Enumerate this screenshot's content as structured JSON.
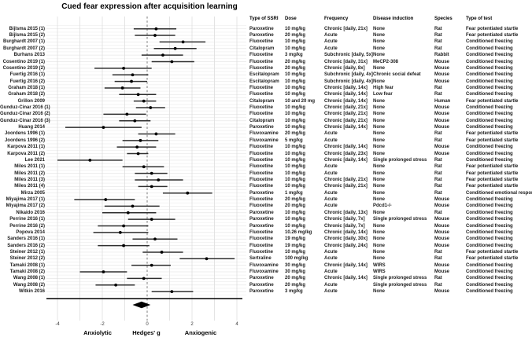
{
  "chart_data": {
    "type": "scatter",
    "subtype": "forest-plot-with-study-table",
    "title": "Cued fear expression after acquisition learning",
    "xlabel": "Hedges' g",
    "xlabel_left": "Anxiolytic",
    "xlabel_right": "Anxiogenic",
    "x_ticks": [
      -4,
      -2,
      0,
      2,
      4
    ],
    "x_gridlines": [
      -4,
      -3,
      -2,
      -1,
      0,
      1,
      2,
      3,
      4
    ],
    "xlim": [
      -4.5,
      4.4
    ],
    "zero_line": 0,
    "grid": "on",
    "colors": {
      "point": "#000000",
      "ci_line": "#2e2e2e",
      "zero_line_dash": "#909090",
      "gridline": "#e0e0e0",
      "diamond": "#000000"
    },
    "columns": [
      "Type of SSRI",
      "Dose",
      "Frequency",
      "Disease induction",
      "Species",
      "Type of test"
    ],
    "studies": [
      {
        "label": "Bijlsma 2015 (1)",
        "ssri": "Paroxetine",
        "dose": "10 mg/kg",
        "frequency": "Chronic [daily, 21x]",
        "disease_induction": "None",
        "species": "Rat",
        "test": "Fear potentiated startle",
        "g": 0.4,
        "ci_low": -0.6,
        "ci_high": 1.3
      },
      {
        "label": "Bijlsma 2015 (2)",
        "ssri": "Paroxetine",
        "dose": "20 mg/kg",
        "frequency": "Acute",
        "disease_induction": "None",
        "species": "Rat",
        "test": "Fear potentiated startle",
        "g": 0.35,
        "ci_low": -0.55,
        "ci_high": 1.25
      },
      {
        "label": "Burghardt 2007 (1)",
        "ssri": "Fluoxetine",
        "dose": "10 mg/kg",
        "frequency": "Acute",
        "disease_induction": "None",
        "species": "Rat",
        "test": "Conditioned freezing",
        "g": 1.6,
        "ci_low": 0.55,
        "ci_high": 2.6
      },
      {
        "label": "Burghardt 2007 (2)",
        "ssri": "Citalopram",
        "dose": "10 mg/kg",
        "frequency": "Acute",
        "disease_induction": "None",
        "species": "Rat",
        "test": "Conditioned freezing",
        "g": 1.25,
        "ci_low": 0.3,
        "ci_high": 2.2
      },
      {
        "label": "Burhans 2013",
        "ssri": "Fluoxetine",
        "dose": "3 mg/kg",
        "frequency": "Subchronic [daily, 5x]",
        "disease_induction": "None",
        "species": "Rabbit",
        "test": "Conditioned freezing",
        "g": 0.7,
        "ci_low": -0.25,
        "ci_high": 1.6
      },
      {
        "label": "Cosentino 2019 (1)",
        "ssri": "Fluoxetine",
        "dose": "20 mg/kg",
        "frequency": "Chronic [daily, 31x]",
        "disease_induction": "MeCP2-308",
        "species": "Mouse",
        "test": "Conditioned freezing",
        "g": 1.1,
        "ci_low": 0.2,
        "ci_high": 2.1
      },
      {
        "label": "Cosentino 2019 (2)",
        "ssri": "Fluoxetine",
        "dose": "20 mg/kg",
        "frequency": "Chronic [daily, 8x]",
        "disease_induction": "None",
        "species": "Mouse",
        "test": "Conditioned freezing",
        "g": -1.05,
        "ci_low": -2.35,
        "ci_high": 0.2
      },
      {
        "label": "Fuertig 2016 (1)",
        "ssri": "Escitalopram",
        "dose": "10 mg/kg",
        "frequency": "Subchronic [daily, 4x]",
        "disease_induction": "Chronic social defeat",
        "species": "Mouse",
        "test": "Conditioned freezing",
        "g": -0.65,
        "ci_low": -1.55,
        "ci_high": 0.05
      },
      {
        "label": "Fuertig 2016 (2)",
        "ssri": "Escitalopram",
        "dose": "10 mg/kg",
        "frequency": "Subchronic [daily, 4x]",
        "disease_induction": "None",
        "species": "Mouse",
        "test": "Conditioned freezing",
        "g": -0.7,
        "ci_low": -1.45,
        "ci_high": 0.0
      },
      {
        "label": "Graham 2018 (1)",
        "ssri": "Fluoxetine",
        "dose": "10 mg/kg",
        "frequency": "Chronic [daily, 14x]",
        "disease_induction": "High fear",
        "species": "Rat",
        "test": "Conditioned freezing",
        "g": -1.1,
        "ci_low": -1.9,
        "ci_high": -0.3
      },
      {
        "label": "Graham 2018 (2)",
        "ssri": "Fluoxetine",
        "dose": "10 mg/kg",
        "frequency": "Chronic [daily, 14x]",
        "disease_induction": "Low fear",
        "species": "Rat",
        "test": "Conditioned freezing",
        "g": -0.4,
        "ci_low": -1.25,
        "ci_high": 0.4
      },
      {
        "label": "Grillon 2009",
        "ssri": "Citalopram",
        "dose": "10 and 20 mg",
        "frequency": "Chronic [daily, 14x]",
        "disease_induction": "None",
        "species": "Human",
        "test": "Fear potentiated startle",
        "g": -0.15,
        "ci_low": -0.6,
        "ci_high": 0.4
      },
      {
        "label": "Gunduz-Cinar 2016 (1)",
        "ssri": "Fluoxetine",
        "dose": "10 mg/kg",
        "frequency": "Chronic [daily, 21x]",
        "disease_induction": "None",
        "species": "Mouse",
        "test": "Conditioned freezing",
        "g": 0.15,
        "ci_low": -0.5,
        "ci_high": 0.8
      },
      {
        "label": "Gunduz-Cinar 2016 (2)",
        "ssri": "Fluoxetine",
        "dose": "10 mg/kg",
        "frequency": "Chronic [daily, 21x]",
        "disease_induction": "None",
        "species": "Mouse",
        "test": "Conditioned freezing",
        "g": -0.9,
        "ci_low": -1.95,
        "ci_high": -0.05
      },
      {
        "label": "Gunduz-Cinar 2016 (3)",
        "ssri": "Citalopram",
        "dose": "10 mg/kg",
        "frequency": "Chronic [daily, 21x]",
        "disease_induction": "None",
        "species": "Mouse",
        "test": "Conditioned freezing",
        "g": -0.55,
        "ci_low": -1.25,
        "ci_high": 0.15
      },
      {
        "label": "Huang 2014",
        "ssri": "Paroxetine",
        "dose": "10 mg/kg",
        "frequency": "Chronic [daily, 14x]",
        "disease_induction": "None",
        "species": "Mouse",
        "test": "Conditioned freezing",
        "g": -1.95,
        "ci_low": -3.65,
        "ci_high": -0.25
      },
      {
        "label": "Joordens 1996 (1)",
        "ssri": "Fluvoxamine",
        "dose": "20 mg/kg",
        "frequency": "Acute",
        "disease_induction": "None",
        "species": "Rat",
        "test": "Fear potentiated startle",
        "g": 0.4,
        "ci_low": -0.4,
        "ci_high": 1.25
      },
      {
        "label": "Joordens 1996 (2)",
        "ssri": "Fluvoxamine",
        "dose": "5 mg/kg",
        "frequency": "Acute",
        "disease_induction": "None",
        "species": "Rat",
        "test": "Fear potentiated startle",
        "g": -0.3,
        "ci_low": -1.1,
        "ci_high": 0.5
      },
      {
        "label": "Karpova 2011 (1)",
        "ssri": "Fluoxetine",
        "dose": "10 mg/kg",
        "frequency": "Chronic [daily, 14x]",
        "disease_induction": "None",
        "species": "Mouse",
        "test": "Conditioned freezing",
        "g": -0.45,
        "ci_low": -1.35,
        "ci_high": 0.4
      },
      {
        "label": "Karpova 2011 (2)",
        "ssri": "Fluoxetine",
        "dose": "10 mg/kg",
        "frequency": "Chronic [daily, 23x]",
        "disease_induction": "None",
        "species": "Mouse",
        "test": "Conditioned freezing",
        "g": -0.4,
        "ci_low": -0.9,
        "ci_high": 0.05
      },
      {
        "label": "Lee 2021",
        "ssri": "Fluoxetine",
        "dose": "10 mg/kg",
        "frequency": "Chronic [daily, 14x]",
        "disease_induction": "Single prolonged stress",
        "species": "Rat",
        "test": "Conditioned freezing",
        "g": -2.55,
        "ci_low": -4.0,
        "ci_high": -1.1
      },
      {
        "label": "Miles 2011 (1)",
        "ssri": "Fluoxetine",
        "dose": "10 mg/kg",
        "frequency": "Acute",
        "disease_induction": "None",
        "species": "Rat",
        "test": "Fear potentiated startle",
        "g": -0.15,
        "ci_low": -1.1,
        "ci_high": 0.75
      },
      {
        "label": "Miles 2011 (2)",
        "ssri": "Fluoxetine",
        "dose": "10 mg/kg",
        "frequency": "Acute",
        "disease_induction": "None",
        "species": "Rat",
        "test": "Fear potentiated startle",
        "g": 0.2,
        "ci_low": -0.55,
        "ci_high": 0.9
      },
      {
        "label": "Miles 2011 (3)",
        "ssri": "Fluoxetine",
        "dose": "10 mg/kg",
        "frequency": "Chronic [daily, 21x]",
        "disease_induction": "None",
        "species": "Rat",
        "test": "Fear potentiated startle",
        "g": 0.5,
        "ci_low": -0.55,
        "ci_high": 1.6
      },
      {
        "label": "Miles 2011 (4)",
        "ssri": "Fluoxetine",
        "dose": "10 mg/kg",
        "frequency": "Chronic [daily, 21x]",
        "disease_induction": "None",
        "species": "Rat",
        "test": "Fear potentiated startle",
        "g": 0.2,
        "ci_low": -0.4,
        "ci_high": 0.9
      },
      {
        "label": "Mirza 2005",
        "ssri": "Paroxetine",
        "dose": "1 mg/kg",
        "frequency": "Acute",
        "disease_induction": "None",
        "species": "Rat",
        "test": "Conditioned emotional response",
        "g": 1.8,
        "ci_low": 0.7,
        "ci_high": 2.9
      },
      {
        "label": "Miyajima 2017 (1)",
        "ssri": "Fluoxetine",
        "dose": "20 mg/kg",
        "frequency": "Acute",
        "disease_induction": "None",
        "species": "Mouse",
        "test": "Conditioned freezing",
        "g": -1.85,
        "ci_low": -3.25,
        "ci_high": -0.55
      },
      {
        "label": "Miyajima 2017 (2)",
        "ssri": "Fluoxetine",
        "dose": "20 mg/kg",
        "frequency": "Acute",
        "disease_induction": "Pdcd1-/-",
        "species": "Mouse",
        "test": "Conditioned freezing",
        "g": -0.65,
        "ci_low": -1.9,
        "ci_high": 0.55
      },
      {
        "label": "Nikaido 2016",
        "ssri": "Paroxetine",
        "dose": "10 mg/kg",
        "frequency": "Chronic [daily, 13x]",
        "disease_induction": "None",
        "species": "Rat",
        "test": "Conditioned freezing",
        "g": -0.85,
        "ci_low": -2.0,
        "ci_high": 0.4
      },
      {
        "label": "Perrine 2016 (1)",
        "ssri": "Paroxetine",
        "dose": "10 mg/kg",
        "frequency": "Chronic [daily, 7x]",
        "disease_induction": "Single prolonged stress",
        "species": "Mouse",
        "test": "Conditioned freezing",
        "g": 0.2,
        "ci_low": -0.85,
        "ci_high": 1.25
      },
      {
        "label": "Perrine 2016 (2)",
        "ssri": "Paroxetine",
        "dose": "10 mg/kg",
        "frequency": "Chronic [daily, 7x]",
        "disease_induction": "None",
        "species": "Mouse",
        "test": "Conditioned freezing",
        "g": -1.05,
        "ci_low": -2.2,
        "ci_high": 0.05
      },
      {
        "label": "Popova 2014",
        "ssri": "Fluoxetine",
        "dose": "10.26 mg/kg",
        "frequency": "Chronic [daily, 14x]",
        "disease_induction": "None",
        "species": "Mouse",
        "test": "Conditioned freezing",
        "g": -1.2,
        "ci_low": -2.4,
        "ci_high": 0.05
      },
      {
        "label": "Sanders 2016 (1)",
        "ssri": "Fluoxetine",
        "dose": "19 mg/kg",
        "frequency": "Chronic [daily, 30x]",
        "disease_induction": "None",
        "species": "Mouse",
        "test": "Conditioned freezing",
        "g": 0.35,
        "ci_low": -0.65,
        "ci_high": 1.35
      },
      {
        "label": "Sanders 2016 (2)",
        "ssri": "Fluoxetine",
        "dose": "19 mg/kg",
        "frequency": "Chronic [daily, 24x]",
        "disease_induction": "None",
        "species": "Mouse",
        "test": "Conditioned freezing",
        "g": -1.05,
        "ci_low": -2.2,
        "ci_high": 0.1
      },
      {
        "label": "Steiner 2012 (1)",
        "ssri": "Fluoxetine",
        "dose": "10 mg/kg",
        "frequency": "Acute",
        "disease_induction": "None",
        "species": "Rat",
        "test": "Fear potentiated startle",
        "g": 0.65,
        "ci_low": -0.2,
        "ci_high": 1.6
      },
      {
        "label": "Steiner 2012 (2)",
        "ssri": "Sertraline",
        "dose": "100 mg/kg",
        "frequency": "Acute",
        "disease_induction": "None",
        "species": "Rat",
        "test": "Fear potentiated startle",
        "g": 2.65,
        "ci_low": 1.45,
        "ci_high": 3.9
      },
      {
        "label": "Tamaki 2008 (1)",
        "ssri": "Fluvoxamine",
        "dose": "30 mg/kg",
        "frequency": "Chronic [daily, 14x]",
        "disease_induction": "WIRS",
        "species": "Mouse",
        "test": "Conditioned freezing",
        "g": 0.2,
        "ci_low": -0.7,
        "ci_high": 1.05
      },
      {
        "label": "Tamaki 2008 (2)",
        "ssri": "Fluvoxamine",
        "dose": "30 mg/kg",
        "frequency": "Acute",
        "disease_induction": "WIRS",
        "species": "Mouse",
        "test": "Conditioned freezing",
        "g": -1.95,
        "ci_low": -3.0,
        "ci_high": -0.9
      },
      {
        "label": "Wang 2008 (1)",
        "ssri": "Paroxetine",
        "dose": "20 mg/kg",
        "frequency": "Chronic [daily, 14x]",
        "disease_induction": "Single prolonged stress",
        "species": "Rat",
        "test": "Conditioned freezing",
        "g": -0.15,
        "ci_low": -0.9,
        "ci_high": 0.65
      },
      {
        "label": "Wang 2008 (2)",
        "ssri": "Paroxetine",
        "dose": "20 mg/kg",
        "frequency": "Acute",
        "disease_induction": "Single prolonged stress",
        "species": "Rat",
        "test": "Conditioned freezing",
        "g": -1.4,
        "ci_low": -2.3,
        "ci_high": -0.55
      },
      {
        "label": "Witkin 2016",
        "ssri": "Paroxetine",
        "dose": "3 mg/kg",
        "frequency": "Acute",
        "disease_induction": "None",
        "species": "Mouse",
        "test": "Conditioned freezing",
        "g": 1.1,
        "ci_low": 0.2,
        "ci_high": 2.05
      }
    ],
    "summary": {
      "g": -0.25,
      "ci_low": -0.65,
      "ci_high": 0.15
    }
  }
}
